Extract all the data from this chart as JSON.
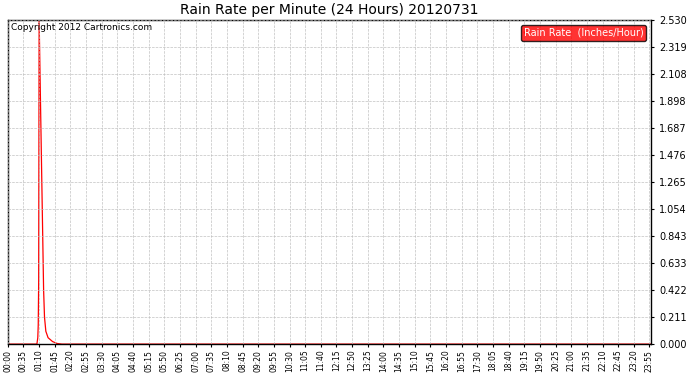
{
  "title": "Rain Rate per Minute (24 Hours) 20120731",
  "copyright_text": "Copyright 2012 Cartronics.com",
  "legend_label": "Rain Rate  (Inches/Hour)",
  "legend_bg": "#ff0000",
  "legend_text_color": "#ffffff",
  "line_color": "#ff0000",
  "background_color": "#ffffff",
  "grid_color": "#bbbbbb",
  "y_ticks": [
    0.0,
    0.211,
    0.422,
    0.633,
    0.843,
    1.054,
    1.265,
    1.476,
    1.687,
    1.898,
    2.108,
    2.319,
    2.53
  ],
  "ylim": [
    0.0,
    2.53
  ],
  "total_minutes": 1440,
  "x_tick_labels": [
    "00:00",
    "00:35",
    "01:10",
    "01:45",
    "02:20",
    "02:55",
    "03:30",
    "04:05",
    "04:40",
    "05:15",
    "05:50",
    "06:25",
    "07:00",
    "07:35",
    "08:10",
    "08:45",
    "09:20",
    "09:55",
    "10:30",
    "11:05",
    "11:40",
    "12:15",
    "12:50",
    "13:25",
    "14:00",
    "14:35",
    "15:10",
    "15:45",
    "16:20",
    "16:55",
    "17:30",
    "18:05",
    "18:40",
    "19:15",
    "19:50",
    "20:25",
    "21:00",
    "21:35",
    "22:10",
    "22:45",
    "23:20",
    "23:55"
  ],
  "x_tick_positions_minutes": [
    0,
    35,
    70,
    105,
    140,
    175,
    210,
    245,
    280,
    315,
    350,
    385,
    420,
    455,
    490,
    525,
    560,
    595,
    630,
    665,
    700,
    735,
    770,
    805,
    840,
    875,
    910,
    945,
    980,
    1015,
    1050,
    1085,
    1120,
    1155,
    1190,
    1225,
    1260,
    1295,
    1330,
    1365,
    1400,
    1435
  ],
  "spike_key_x": [
    0,
    60,
    63,
    65,
    67,
    68,
    69,
    70,
    71,
    72,
    73,
    74,
    75,
    76,
    77,
    78,
    79,
    80,
    82,
    85,
    90,
    100,
    110,
    120,
    1439
  ],
  "spike_key_y": [
    0,
    0,
    0,
    0,
    0.05,
    0.15,
    0.5,
    2.53,
    2.319,
    2.108,
    1.898,
    1.687,
    1.476,
    1.265,
    1.054,
    0.843,
    0.633,
    0.422,
    0.211,
    0.1,
    0.05,
    0.02,
    0.005,
    0.0,
    0.0
  ]
}
